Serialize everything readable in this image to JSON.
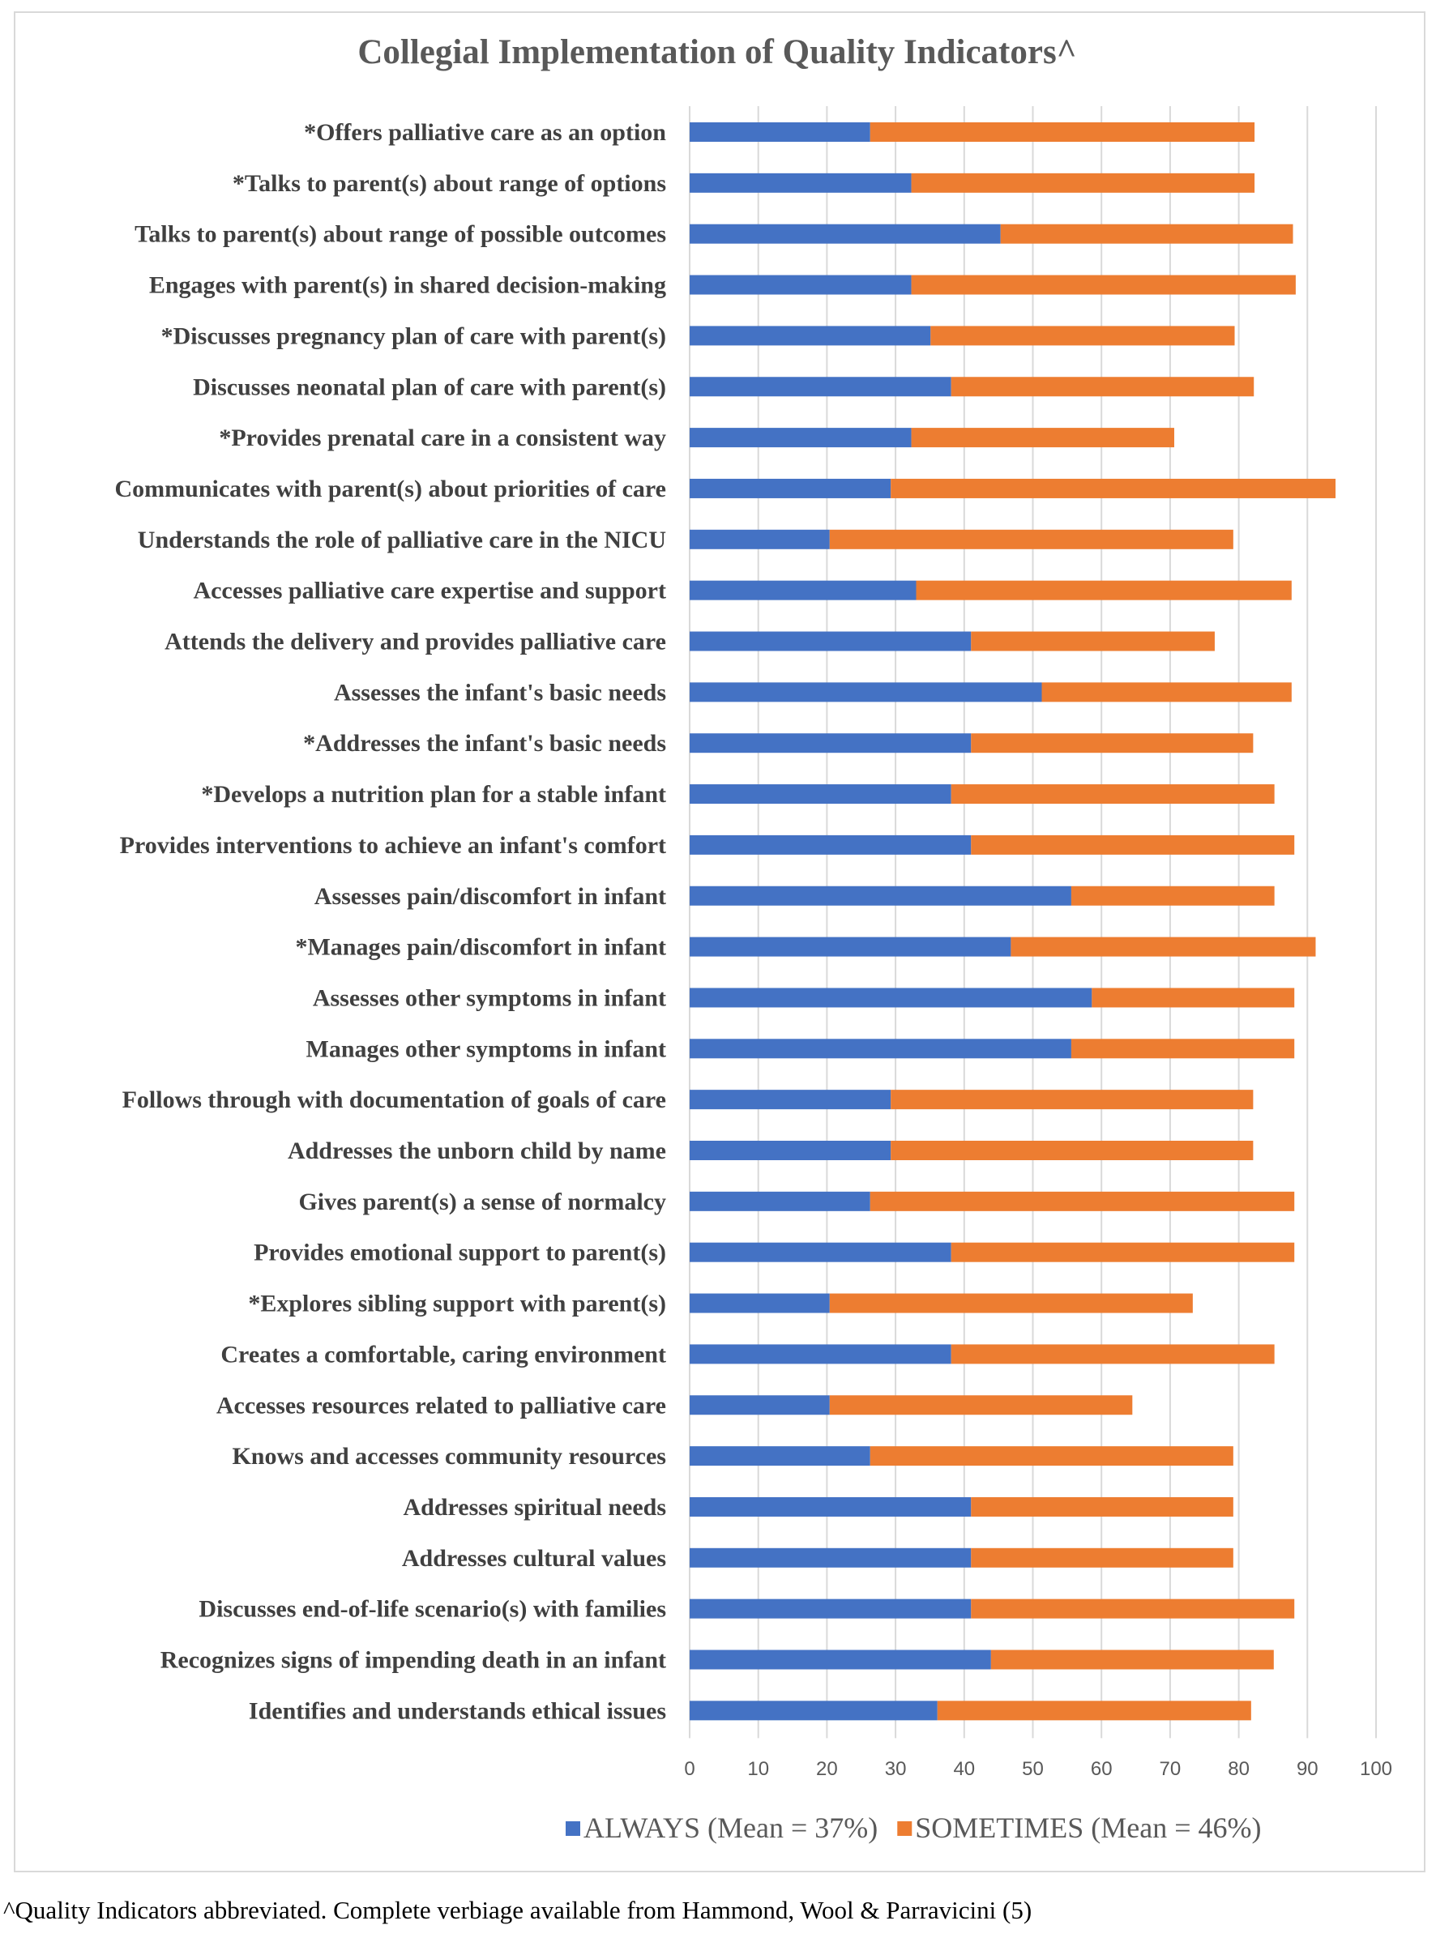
{
  "chart_data": {
    "type": "bar",
    "orientation": "horizontal",
    "stacked": true,
    "title": "Collegial Implementation of Quality Indicators^",
    "xlabel": "",
    "ylabel": "",
    "xlim": [
      0,
      100
    ],
    "xticks": [
      0,
      10,
      20,
      30,
      40,
      50,
      60,
      70,
      80,
      90,
      100
    ],
    "grid": true,
    "legend_position": "bottom",
    "categories": [
      "*Offers palliative care as an option",
      "*Talks to parent(s) about range of options",
      "Talks to parent(s) about range of possible outcomes",
      "Engages with parent(s) in shared decision-making",
      "*Discusses pregnancy plan of care with parent(s)",
      "Discusses neonatal plan of care with parent(s)",
      "*Provides prenatal care in a consistent way",
      "Communicates with parent(s) about priorities of care",
      "Understands the role of palliative care in the NICU",
      "Accesses palliative care expertise and support",
      "Attends the delivery and provides palliative care",
      "Assesses the infant's basic needs",
      "*Addresses the infant's basic needs",
      "*Develops a nutrition plan for a stable infant",
      "Provides interventions to achieve an infant's comfort",
      "Assesses pain/discomfort in infant",
      "*Manages pain/discomfort in infant",
      "Assesses other symptoms in infant",
      "Manages other symptoms in infant",
      "Follows through with documentation of goals of care",
      "Addresses the unborn child by name",
      "Gives parent(s) a sense of normalcy",
      "Provides emotional support to parent(s)",
      "*Explores sibling support with parent(s)",
      "Creates a comfortable, caring environment",
      "Accesses resources related to palliative care",
      "Knows and accesses community resources",
      "Addresses spiritual needs",
      "Addresses cultural values",
      "Discusses end-of-life scenario(s) with families",
      "Recognizes signs of impending death in an infant",
      "Identifies and understands ethical issues"
    ],
    "series": [
      {
        "name": "ALWAYS (Mean = 37%)",
        "color": "#4472C4",
        "values": [
          26.3,
          32.3,
          45.3,
          32.3,
          35.1,
          38.1,
          32.3,
          29.3,
          20.4,
          33.0,
          41.0,
          51.3,
          41.0,
          38.1,
          41.0,
          55.6,
          46.8,
          58.6,
          55.6,
          29.3,
          29.3,
          26.3,
          38.1,
          20.4,
          38.1,
          20.4,
          26.3,
          41.0,
          41.0,
          41.0,
          43.9,
          36.1
        ]
      },
      {
        "name": "SOMETIMES (Mean = 46%)",
        "color": "#ED7D31",
        "values": [
          56.0,
          50.0,
          42.6,
          56.0,
          44.3,
          44.1,
          38.3,
          64.8,
          58.8,
          54.7,
          35.5,
          36.4,
          41.1,
          47.1,
          47.1,
          29.6,
          44.4,
          29.5,
          32.5,
          52.8,
          52.8,
          61.8,
          50.0,
          52.9,
          47.1,
          44.1,
          52.9,
          38.2,
          38.2,
          47.1,
          41.2,
          45.7
        ]
      }
    ]
  },
  "footnote": "^Quality Indicators abbreviated. Complete verbiage available from Hammond, Wool & Parravicini (5)"
}
